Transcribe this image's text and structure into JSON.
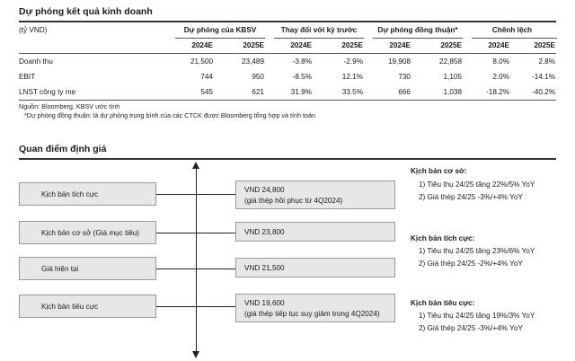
{
  "section1": {
    "title": "Dự phóng kết quả kinh doanh",
    "unit": "(tỷ VND)",
    "groups": [
      "Dự phóng của KBSV",
      "Thay đổi với kỳ trước",
      "Dự phóng đồng thuận*",
      "Chênh lệch"
    ],
    "years": [
      "2024E",
      "2025E",
      "2024E",
      "2025E",
      "2024E",
      "2025E",
      "2024E",
      "2025E"
    ],
    "rows": [
      {
        "label": "Doanh thu",
        "values": [
          "21,500",
          "23,489",
          "-3.8%",
          "-2.9%",
          "19,908",
          "22,858",
          "8.0%",
          "2.8%"
        ]
      },
      {
        "label": "EBIT",
        "values": [
          "744",
          "950",
          "-8.5%",
          "12.1%",
          "730",
          "1,105",
          "2.0%",
          "-14.1%"
        ]
      },
      {
        "label": "LNST công ty mẹ",
        "values": [
          "545",
          "621",
          "31.9%",
          "33.5%",
          "666",
          "1,038",
          "-18.2%",
          "-40.2%"
        ]
      }
    ],
    "source": "Nguồn: Bloomberg, KBSV ước tính",
    "footnote": "*Dự phóng đồng thuận: là dự phóng trung bình của các CTCK được Bloomberg tổng hợp và tính toán"
  },
  "section2": {
    "title": "Quan điểm định giá",
    "scenarios": [
      {
        "label": "Kịch bản tích cực",
        "value": "VND 24,800",
        "note": "(giá thép hồi phục từ 4Q2024)"
      },
      {
        "label": "Kịch bản cơ sở (Giá mục tiêu)",
        "value": "VND 23,800",
        "note": ""
      },
      {
        "label": "Giá hiện tại",
        "value": "VND 21,500",
        "note": ""
      },
      {
        "label": "Kịch bản tiêu cực",
        "value": "VND 19,600",
        "note": "(giá thép tiếp tục suy giảm trong 4Q2024)"
      }
    ],
    "details": [
      {
        "title": "Kịch bản cơ sở:",
        "lines": [
          "1) Tiêu thụ 24/25 tăng 22%/5% YoY",
          "2) Giá thép 24/25 -3%/+4% YoY"
        ]
      },
      {
        "title": "Kịch bản tích cực:",
        "lines": [
          "1) Tiêu thụ 24/25 tăng 23%/6% YoY",
          "2) Giá thép 24/25 -2%/+4% YoY"
        ]
      },
      {
        "title": "Kịch bản tiêu cực:",
        "lines": [
          "1) Tiêu thụ 24/25 tăng 19%/3% YoY",
          "2) Giá thép 24/25 -3%/+4% YoY"
        ]
      }
    ]
  }
}
